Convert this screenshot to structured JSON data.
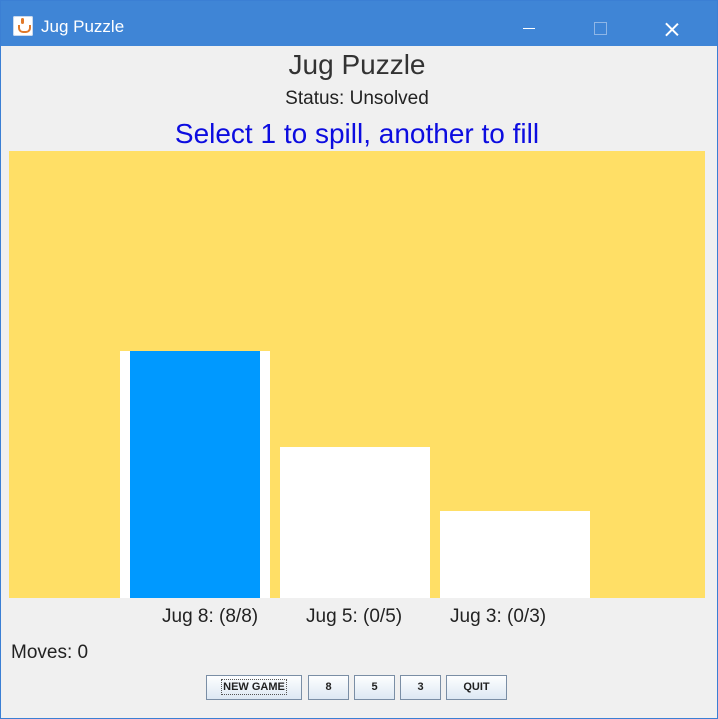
{
  "window": {
    "title": "Jug Puzzle",
    "icon": "java-cup-icon"
  },
  "header": {
    "title": "Jug Puzzle",
    "status": "Status: Unsolved",
    "instruction": "Select 1 to spill, another to fill"
  },
  "colors": {
    "board": "#ffdf66",
    "water": "#0099ff",
    "jug": "#ffffff",
    "instruction": "#0c0ce0"
  },
  "jugs": [
    {
      "capacity": 8,
      "amount": 8,
      "label": "Jug 8: (8/8)"
    },
    {
      "capacity": 5,
      "amount": 0,
      "label": "Jug 5: (0/5)"
    },
    {
      "capacity": 3,
      "amount": 0,
      "label": "Jug 3: (0/3)"
    }
  ],
  "moves": "Moves: 0",
  "buttons": {
    "new_game": "NEW GAME",
    "jug8": "8",
    "jug5": "5",
    "jug3": "3",
    "quit": "QUIT"
  }
}
